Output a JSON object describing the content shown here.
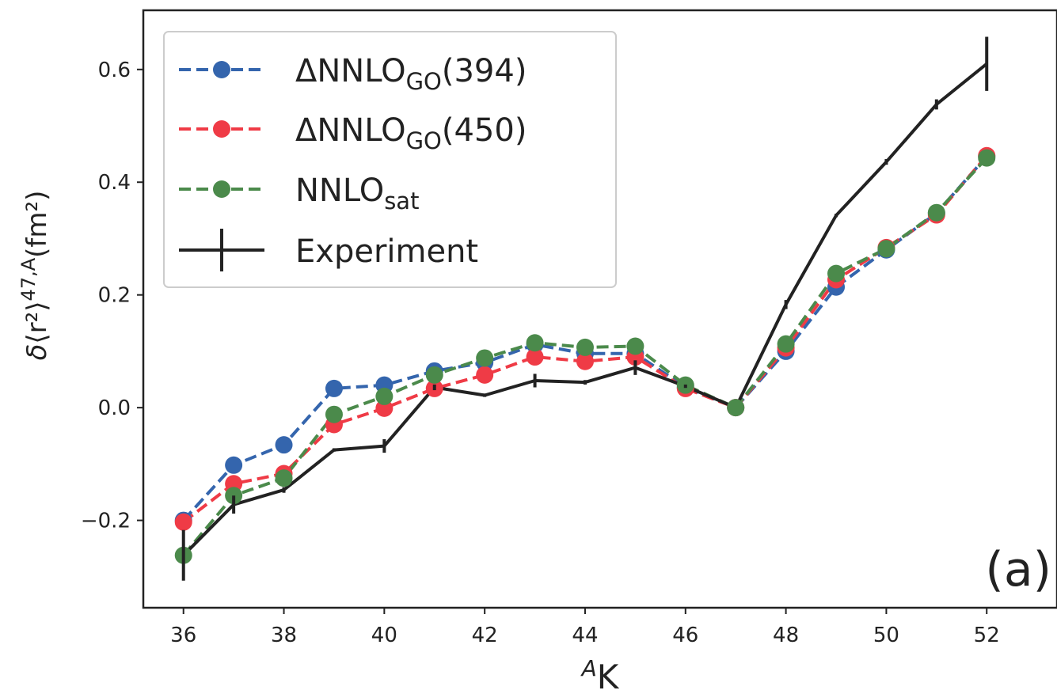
{
  "chart_data": {
    "type": "line",
    "panel_label": "(a)",
    "xlabel": {
      "sup": "A",
      "main": "K"
    },
    "ylabel": {
      "delta": "δ",
      "r2": "⟨r²⟩",
      "sup": "47,A",
      "unit": "(fm²)"
    },
    "xlim": [
      35.2,
      53.4
    ],
    "ylim": [
      -0.355,
      0.705
    ],
    "x_ticks": [
      36,
      38,
      40,
      42,
      44,
      46,
      48,
      50,
      52
    ],
    "x_tick_labels": [
      "36",
      "38",
      "40",
      "42",
      "44",
      "46",
      "48",
      "50",
      "52"
    ],
    "y_ticks": [
      -0.2,
      0.0,
      0.2,
      0.4,
      0.6
    ],
    "y_tick_labels": [
      "−0.2",
      "0.0",
      "0.2",
      "0.4",
      "0.6"
    ],
    "legend_position": "upper-left",
    "x": [
      36,
      37,
      38,
      39,
      40,
      41,
      42,
      43,
      44,
      45,
      46,
      47,
      48,
      49,
      50,
      51,
      52
    ],
    "series": [
      {
        "name": {
          "main": "ΔNNLO",
          "sub": "GO",
          "tail": "(394)"
        },
        "color": "#3465ad",
        "style": "dashed-markers",
        "x": [
          36,
          37,
          38,
          39,
          40,
          41,
          42,
          43,
          44,
          45,
          46,
          47,
          48,
          49,
          50,
          51,
          52
        ],
        "values": [
          -0.2,
          -0.102,
          -0.066,
          0.034,
          0.04,
          0.065,
          0.08,
          0.112,
          0.096,
          0.096,
          0.036,
          0.0,
          0.1,
          0.214,
          0.28,
          0.345,
          0.446
        ]
      },
      {
        "name": {
          "main": "ΔNNLO",
          "sub": "GO",
          "tail": "(450)"
        },
        "color": "#ef3b46",
        "style": "dashed-markers",
        "x": [
          36,
          37,
          38,
          39,
          40,
          41,
          42,
          43,
          44,
          45,
          46,
          47,
          48,
          49,
          50,
          51,
          52
        ],
        "values": [
          -0.203,
          -0.135,
          -0.117,
          -0.03,
          -0.001,
          0.034,
          0.058,
          0.09,
          0.082,
          0.09,
          0.034,
          0.0,
          0.106,
          0.227,
          0.284,
          0.342,
          0.447
        ]
      },
      {
        "name": {
          "main": "NNLO",
          "sub": "sat",
          "tail": ""
        },
        "color": "#4b8a4b",
        "style": "dashed-markers",
        "x": [
          36,
          37,
          38,
          39,
          40,
          41,
          42,
          43,
          44,
          45,
          46,
          47,
          48,
          49,
          50,
          51,
          52
        ],
        "values": [
          -0.262,
          -0.156,
          -0.125,
          -0.012,
          0.02,
          0.058,
          0.088,
          0.115,
          0.107,
          0.109,
          0.04,
          0.0,
          0.113,
          0.238,
          0.282,
          0.346,
          0.443
        ]
      },
      {
        "name": {
          "main": "Experiment",
          "sub": "",
          "tail": ""
        },
        "color": "#222222",
        "style": "solid-errorbars",
        "x": [
          36,
          37,
          38,
          39,
          40,
          41,
          42,
          43,
          44,
          45,
          46,
          47,
          48,
          49,
          50,
          51,
          52
        ],
        "values": [
          -0.262,
          -0.172,
          -0.146,
          -0.075,
          -0.068,
          0.036,
          0.022,
          0.048,
          0.045,
          0.071,
          0.038,
          0.0,
          0.183,
          0.341,
          0.436,
          0.538,
          0.61
        ],
        "errors": [
          0.045,
          0.016,
          0.005,
          0.003,
          0.012,
          0.005,
          0.003,
          0.012,
          0.004,
          0.013,
          0.003,
          0.0,
          0.008,
          0.003,
          0.005,
          0.009,
          0.048
        ]
      }
    ]
  }
}
